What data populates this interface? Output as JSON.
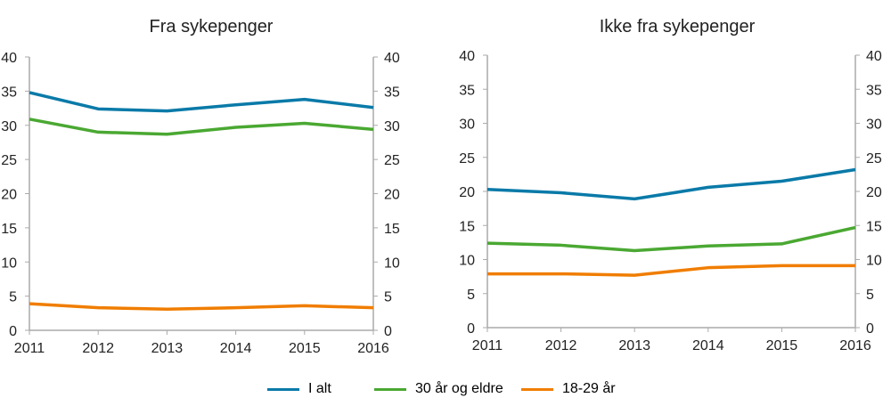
{
  "chart_data": [
    {
      "type": "line",
      "title": "Fra sykepenger",
      "categories": [
        "2011",
        "2012",
        "2013",
        "2014",
        "2015",
        "2016"
      ],
      "ylim": [
        0,
        40
      ],
      "yticks": [
        0,
        5,
        10,
        15,
        20,
        25,
        30,
        35,
        40
      ],
      "grid": false,
      "series": [
        {
          "name": "I alt",
          "color": "#0a7aa8",
          "values": [
            34.8,
            32.4,
            32.1,
            33.0,
            33.8,
            32.6
          ]
        },
        {
          "name": "30 år og eldre",
          "color": "#4aa832",
          "values": [
            30.9,
            29.0,
            28.7,
            29.7,
            30.3,
            29.4
          ]
        },
        {
          "name": "18-29 år",
          "color": "#f07d00",
          "values": [
            3.9,
            3.3,
            3.1,
            3.3,
            3.6,
            3.3
          ]
        }
      ]
    },
    {
      "type": "line",
      "title": "Ikke fra sykepenger",
      "categories": [
        "2011",
        "2012",
        "2013",
        "2014",
        "2015",
        "2016"
      ],
      "ylim": [
        0,
        40
      ],
      "yticks": [
        0,
        5,
        10,
        15,
        20,
        25,
        30,
        35,
        40
      ],
      "grid": false,
      "series": [
        {
          "name": "I alt",
          "color": "#0a7aa8",
          "values": [
            20.3,
            19.8,
            18.9,
            20.6,
            21.5,
            23.2
          ]
        },
        {
          "name": "30 år og eldre",
          "color": "#4aa832",
          "values": [
            12.4,
            12.1,
            11.3,
            12.0,
            12.3,
            14.7
          ]
        },
        {
          "name": "18-29 år",
          "color": "#f07d00",
          "values": [
            7.9,
            7.9,
            7.7,
            8.8,
            9.1,
            9.1
          ]
        }
      ]
    }
  ],
  "legend": {
    "placement": "bottom",
    "items": [
      {
        "label": "I alt",
        "color": "#0a7aa8"
      },
      {
        "label": "30 år og eldre",
        "color": "#4aa832"
      },
      {
        "label": "18-29 år",
        "color": "#f07d00"
      }
    ]
  }
}
